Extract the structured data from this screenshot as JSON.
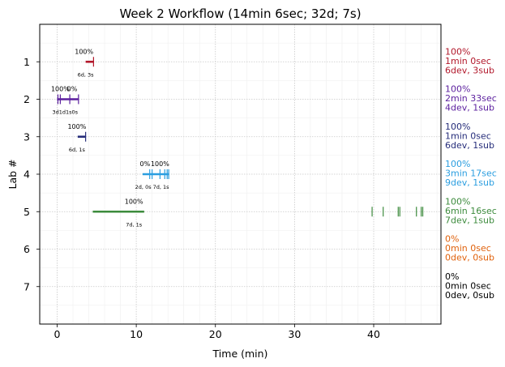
{
  "chart_data": {
    "type": "timeline",
    "title": "Week 2 Workflow (14min 6sec; 32d; 7s)",
    "xlabel": "Time (min)",
    "ylabel": "Lab #",
    "xlim": [
      -2.2,
      48.5
    ],
    "ylim": [
      8.0,
      0.0
    ],
    "xticks": [
      0,
      10,
      20,
      30,
      40
    ],
    "yticks": [
      1,
      2,
      3,
      4,
      5,
      6,
      7
    ],
    "grid": true,
    "labs": [
      {
        "lab": 1,
        "color": "#b2182b",
        "bars": [
          {
            "start": 3.6,
            "end": 4.6
          }
        ],
        "events": [
          4.6
        ],
        "pct_labels": [
          {
            "x": 3.4,
            "text": "100%"
          }
        ],
        "sub_label": {
          "x": 3.6,
          "text": "6d, 3s"
        },
        "summary": [
          "100%",
          "1min 0sec",
          "6dev, 3sub"
        ]
      },
      {
        "lab": 2,
        "color": "#5b1f9e",
        "bars": [
          {
            "start": 0.0,
            "end": 2.7
          }
        ],
        "events": [
          0.1,
          0.4,
          1.6,
          2.7
        ],
        "pct_labels": [
          {
            "x": 0.4,
            "text": "100%"
          },
          {
            "x": 1.9,
            "text": "0%"
          }
        ],
        "sub_label": {
          "x": 1.0,
          "text": "3d1d1s0s"
        },
        "summary": [
          "100%",
          "2min 33sec",
          "4dev, 1sub"
        ]
      },
      {
        "lab": 3,
        "color": "#262d7a",
        "bars": [
          {
            "start": 2.6,
            "end": 3.6
          }
        ],
        "events": [
          3.6
        ],
        "pct_labels": [
          {
            "x": 2.5,
            "text": "100%"
          }
        ],
        "sub_label": {
          "x": 2.5,
          "text": "6d, 1s"
        },
        "summary": [
          "100%",
          "1min 0sec",
          "6dev, 1sub"
        ]
      },
      {
        "lab": 4,
        "color": "#2b9ee0",
        "bars": [
          {
            "start": 10.8,
            "end": 14.1
          }
        ],
        "events": [
          11.7,
          12.0,
          13.0,
          13.6,
          13.9,
          14.1
        ],
        "pct_labels": [
          {
            "x": 11.1,
            "text": "0%"
          },
          {
            "x": 13.0,
            "text": "100%"
          }
        ],
        "sub_label": {
          "x": 12.0,
          "text": "2d, 0s 7d, 1s"
        },
        "summary": [
          "100%",
          "3min 17sec",
          "9dev, 1sub"
        ]
      },
      {
        "lab": 5,
        "color": "#3d8b3d",
        "bars": [
          {
            "start": 4.5,
            "end": 11.0
          }
        ],
        "events": [
          39.8,
          41.2,
          43.1,
          43.3,
          45.4,
          46.0,
          46.2
        ],
        "pct_labels": [
          {
            "x": 9.7,
            "text": "100%"
          }
        ],
        "sub_label": {
          "x": 9.7,
          "text": "7d, 1s"
        },
        "summary": [
          "100%",
          "6min 16sec",
          "7dev, 1sub"
        ]
      },
      {
        "lab": 6,
        "color": "#e0620d",
        "bars": [],
        "events": [],
        "pct_labels": [],
        "sub_label": null,
        "summary": [
          "0%",
          "0min 0sec",
          "0dev, 0sub"
        ]
      },
      {
        "lab": 7,
        "color": "#000000",
        "bars": [],
        "events": [],
        "pct_labels": [],
        "sub_label": null,
        "summary": [
          "0%",
          "0min 0sec",
          "0dev, 0sub"
        ]
      }
    ]
  }
}
